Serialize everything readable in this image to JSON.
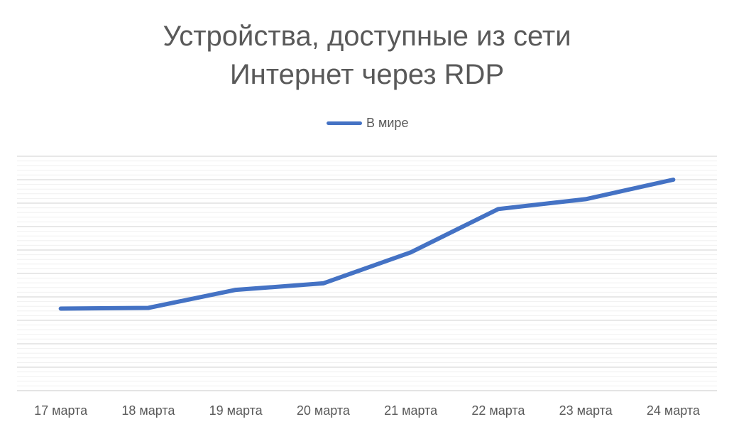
{
  "chart_data": {
    "type": "line",
    "title_lines": [
      "Устройства, доступные из сети",
      "Интернет через RDP"
    ],
    "categories": [
      "17 марта",
      "18 марта",
      "19 марта",
      "20 марта",
      "21 марта",
      "22 марта",
      "23 марта",
      "24 марта"
    ],
    "series": [
      {
        "name": "В мире",
        "color": "#4472C4",
        "values": [
          35.0,
          35.3,
          43.0,
          45.8,
          59.0,
          77.5,
          81.7,
          90.0
        ]
      }
    ],
    "ylim": [
      0,
      100
    ],
    "y_tick_labels_shown": false,
    "grid": true,
    "legend_position": "top"
  }
}
